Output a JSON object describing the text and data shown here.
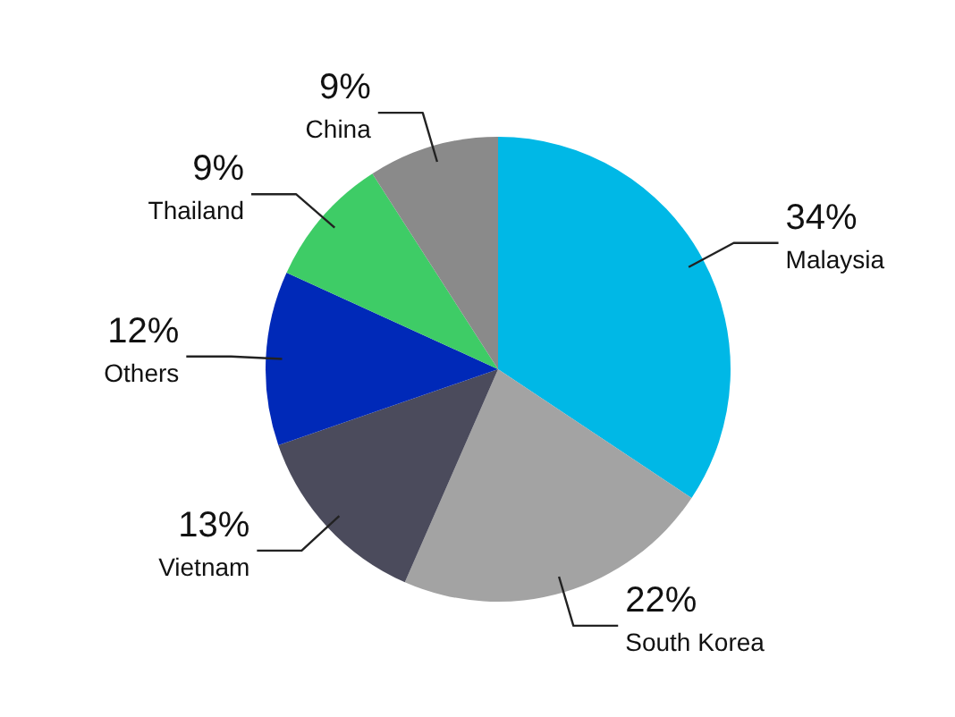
{
  "chart_data": {
    "type": "pie",
    "categories": [
      "Malaysia",
      "South Korea",
      "Vietnam",
      "Others",
      "Thailand",
      "China"
    ],
    "values": [
      34,
      22,
      13,
      12,
      9,
      9
    ],
    "colors": [
      "#00b8e6",
      "#a3a3a3",
      "#4b4b5c",
      "#0029b8",
      "#3ecc66",
      "#8a8a8a"
    ],
    "value_labels": [
      "34%",
      "22%",
      "13%",
      "12%",
      "9%",
      "9%"
    ]
  }
}
